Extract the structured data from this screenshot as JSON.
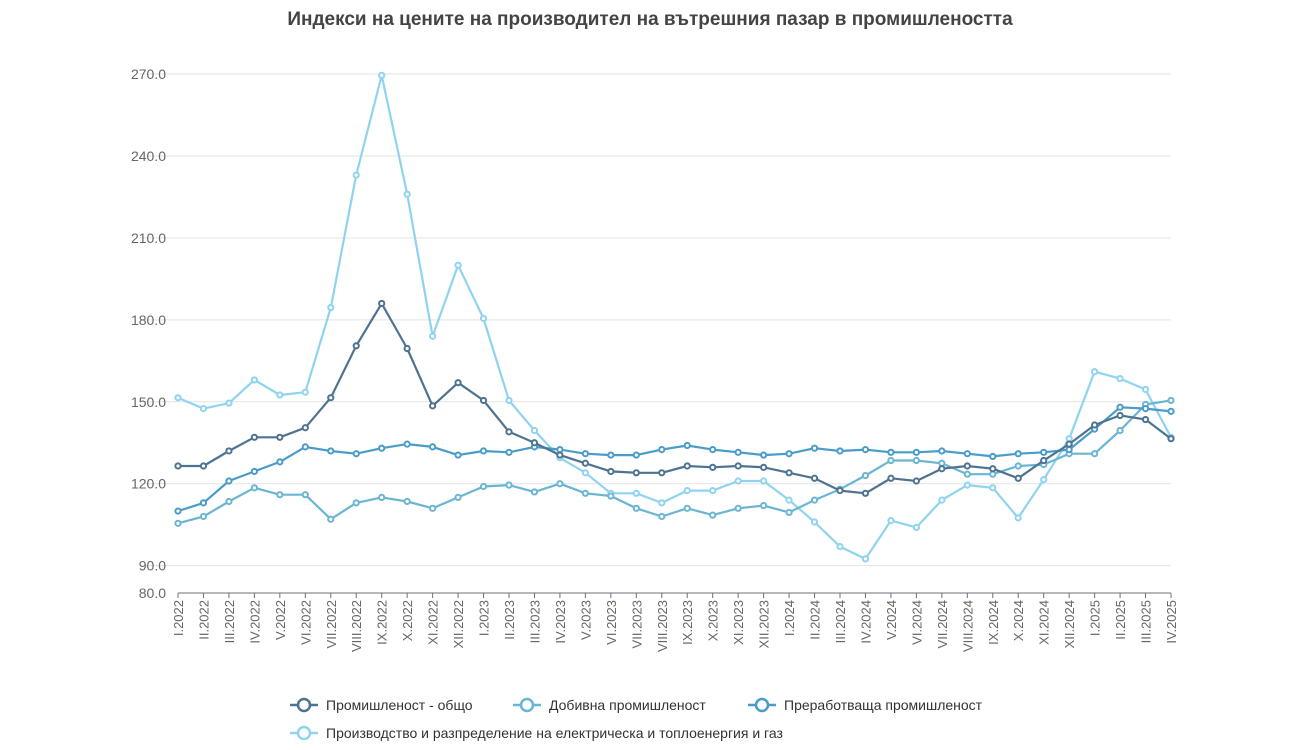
{
  "chart_data": {
    "type": "line",
    "title": "Индекси на цените на производител на вътрешния пазар в промишлеността",
    "xlabel": "",
    "ylabel": "",
    "ylim": [
      80,
      270
    ],
    "yticks": [
      "80.0",
      "90.0",
      "120.0",
      "150.0",
      "180.0",
      "210.0",
      "240.0",
      "270.0"
    ],
    "grid": true,
    "legend_position": "bottom",
    "categories": [
      "I.2022",
      "II.2022",
      "III.2022",
      "IV.2022",
      "V.2022",
      "VI.2022",
      "VII.2022",
      "VIII.2022",
      "IX.2022",
      "X.2022",
      "XI.2022",
      "XII.2022",
      "I.2023",
      "II.2023",
      "III.2023",
      "IV.2023",
      "V.2023",
      "VI.2023",
      "VII.2023",
      "VIII.2023",
      "IX.2023",
      "X.2023",
      "XI.2023",
      "XII.2023",
      "I.2024",
      "II.2024",
      "III.2024",
      "IV.2024",
      "V.2024",
      "VI.2024",
      "VII.2024",
      "VIII.2024",
      "IX.2024",
      "X.2024",
      "XI.2024",
      "XII.2024",
      "I.2025",
      "II.2025",
      "III.2025",
      "IV.2025"
    ],
    "series": [
      {
        "name": "Промишленост - общо",
        "color": "#4e7391",
        "values": [
          126.5,
          126.5,
          132.0,
          137.0,
          137.0,
          140.5,
          151.5,
          170.5,
          186.0,
          169.5,
          148.5,
          157.0,
          150.5,
          139.0,
          135.0,
          130.5,
          127.5,
          124.5,
          124.0,
          124.0,
          126.5,
          126.0,
          126.5,
          126.0,
          124.0,
          122.0,
          117.5,
          116.5,
          122.0,
          121.0,
          125.5,
          126.5,
          125.5,
          122.0,
          128.5,
          134.5,
          141.5,
          145.0,
          143.5,
          136.5
        ]
      },
      {
        "name": "Добивна промишленост",
        "color": "#6ab5d4",
        "values": [
          105.5,
          108.0,
          113.5,
          118.5,
          116.0,
          116.0,
          107.0,
          113.0,
          115.0,
          113.5,
          111.0,
          115.0,
          119.0,
          119.5,
          117.0,
          120.0,
          116.5,
          115.5,
          111.0,
          108.0,
          111.0,
          108.5,
          111.0,
          112.0,
          109.5,
          114.0,
          118.0,
          123.0,
          128.5,
          128.5,
          127.5,
          123.5,
          123.5,
          126.5,
          127.0,
          131.0,
          131.0,
          139.5,
          149.0,
          150.5
        ]
      },
      {
        "name": "Преработваща промишленост",
        "color": "#4a9cc8",
        "values": [
          110.0,
          113.0,
          121.0,
          124.5,
          128.0,
          133.5,
          132.0,
          131.0,
          133.0,
          134.5,
          133.5,
          130.5,
          132.0,
          131.5,
          133.5,
          132.5,
          131.0,
          130.5,
          130.5,
          132.5,
          134.0,
          132.5,
          131.5,
          130.5,
          131.0,
          133.0,
          132.0,
          132.5,
          131.5,
          131.5,
          132.0,
          131.0,
          130.0,
          131.0,
          131.5,
          132.5,
          140.0,
          148.0,
          147.5,
          146.5
        ]
      },
      {
        "name": "Производство и разпределение на електрическа и топлоенергия и газ",
        "color": "#8fd3f0",
        "values": [
          151.5,
          147.5,
          149.5,
          158.0,
          152.5,
          153.5,
          184.5,
          233.0,
          269.5,
          226.0,
          174.0,
          200.0,
          180.5,
          150.5,
          139.5,
          129.5,
          124.0,
          116.5,
          116.5,
          113.0,
          117.5,
          117.5,
          121.0,
          121.0,
          114.0,
          106.0,
          97.0,
          92.5,
          106.5,
          104.0,
          114.0,
          119.5,
          118.5,
          107.5,
          121.5,
          136.5,
          161.0,
          158.5,
          154.5,
          137.0
        ]
      }
    ]
  }
}
